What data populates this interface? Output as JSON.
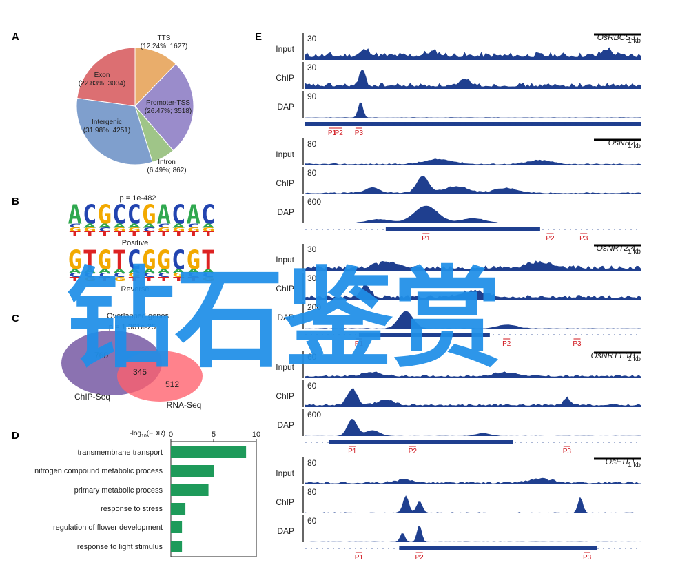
{
  "panels": {
    "a": "A",
    "b": "B",
    "c": "C",
    "d": "D",
    "e": "E"
  },
  "pie": {
    "slices": [
      {
        "name": "TTS",
        "stats": "(12.24%; 1627)",
        "percent": 12.24,
        "count": 1627,
        "color": "#e9ad6b"
      },
      {
        "name": "Promoter-TSS",
        "stats": "(26.47%; 3518)",
        "percent": 26.47,
        "count": 3518,
        "color": "#9a8ccb"
      },
      {
        "name": "Intron",
        "stats": "(6.49%; 862)",
        "percent": 6.49,
        "count": 862,
        "color": "#9fc588"
      },
      {
        "name": "Intergenic",
        "stats": "(31.98%; 4251)",
        "percent": 31.98,
        "count": 4251,
        "color": "#7f9fcd"
      },
      {
        "name": "Exon",
        "stats": "(22.83%; 3034)",
        "percent": 22.83,
        "count": 3034,
        "color": "#dc6f72"
      }
    ]
  },
  "motif": {
    "pvalue": "p = 1e-482",
    "positive_label": "Positive",
    "reverse_label": "Reverse",
    "positive_seq": "ACGCCGACAC",
    "reverse_seq": "GTGTCGGCGT",
    "letter_colors": {
      "A": "#2fa84f",
      "C": "#2244b0",
      "G": "#f2a900",
      "T": "#dd2222"
    }
  },
  "venn": {
    "title": "Overlapped genes",
    "pvalue": "p = 1.361e-25",
    "chip_only": "760",
    "overlap": "345",
    "rna_only": "512",
    "chip_label": "ChIP-Seq",
    "rna_label": "RNA-Seq"
  },
  "go_chart": {
    "axis_label": "-log10(FDR)",
    "axis_label_main": "-log",
    "axis_label_sub": "10",
    "axis_label_end": "(FDR)",
    "ticks": [
      0,
      5,
      10
    ],
    "tick_labels": [
      "0",
      "5",
      "10"
    ],
    "xlim": [
      0,
      10
    ]
  },
  "chart_data": {
    "type": "bar",
    "orientation": "horizontal",
    "categories": [
      "transmembrane transport",
      "nitrogen compound metabolic process",
      "primary metabolic process",
      "response to stress",
      "regulation of flower development",
      "response to light stimulus"
    ],
    "values": [
      8.8,
      5.0,
      4.4,
      1.7,
      1.3,
      1.3
    ],
    "xlabel": "-log10(FDR)",
    "xlim": [
      0,
      10
    ],
    "color": "#1e9a5a"
  },
  "genes": [
    {
      "name": "OsRBCS3",
      "scale": "1 kb",
      "tracks": [
        {
          "label": "Input",
          "max": "30"
        },
        {
          "label": "ChIP",
          "max": "30"
        },
        {
          "label": "DAP",
          "max": "90"
        }
      ],
      "promoters": [
        "P1",
        "P2",
        "P3"
      ]
    },
    {
      "name": "OsNR2",
      "scale": "1 kb",
      "tracks": [
        {
          "label": "Input",
          "max": "80"
        },
        {
          "label": "ChIP",
          "max": "80"
        },
        {
          "label": "DAP",
          "max": "600"
        }
      ],
      "promoters": [
        "P1",
        "P2",
        "P3"
      ]
    },
    {
      "name": "OsNRT2.4",
      "scale": "1 kb",
      "tracks": [
        {
          "label": "Input",
          "max": "30"
        },
        {
          "label": "ChIP",
          "max": "30"
        },
        {
          "label": "DAP",
          "max": "200"
        }
      ],
      "promoters": [
        "P1",
        "P2",
        "P3"
      ]
    },
    {
      "name": "OsNRT1.1B",
      "scale": "1 kb",
      "tracks": [
        {
          "label": "Input",
          "max": "60"
        },
        {
          "label": "ChIP",
          "max": "60"
        },
        {
          "label": "DAP",
          "max": "600"
        }
      ],
      "promoters": [
        "P1",
        "P2",
        "P3"
      ]
    },
    {
      "name": "OsFTL1",
      "scale": "1 kb",
      "tracks": [
        {
          "label": "Input",
          "max": "80"
        },
        {
          "label": "ChIP",
          "max": "80"
        },
        {
          "label": "DAP",
          "max": "60"
        }
      ],
      "promoters": [
        "P1",
        "P2",
        "P3"
      ]
    }
  ],
  "watermark": "钻石鉴赏",
  "colors": {
    "track": "#1f3f8f",
    "promoter": "#d0141b",
    "watermark": "#1f8fe8"
  }
}
